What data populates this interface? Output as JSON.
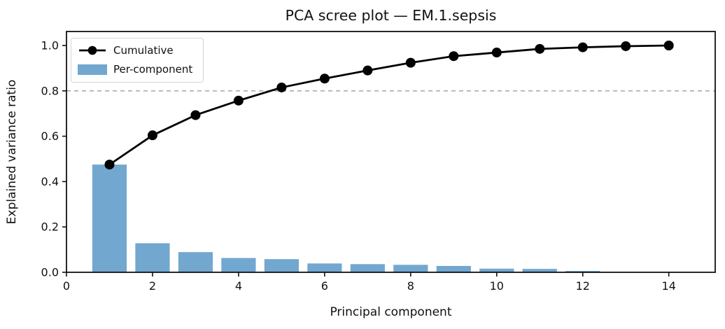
{
  "figure": {
    "title": "PCA scree plot — EM.1.sepsis",
    "xlabel": "Principal component",
    "ylabel": "Explained variance ratio"
  },
  "legend": {
    "position": "upper left",
    "items": [
      {
        "label": "Cumulative",
        "swatch": "black-line-with-circle-marker",
        "color": "#000000"
      },
      {
        "label": "Per-component",
        "swatch": "filled-patch",
        "color": "#72a7cf"
      }
    ]
  },
  "chart_data": {
    "type": "bar",
    "title": "PCA scree plot — EM.1.sepsis",
    "xlabel": "Principal component",
    "ylabel": "Explained variance ratio",
    "categories": [
      1,
      2,
      3,
      4,
      5,
      6,
      7,
      8,
      9,
      10,
      11,
      12,
      13,
      14
    ],
    "series": [
      {
        "name": "Per-component",
        "type": "bar",
        "color": "#72a7cf",
        "values": [
          0.475,
          0.128,
          0.089,
          0.063,
          0.058,
          0.039,
          0.036,
          0.033,
          0.028,
          0.016,
          0.015,
          0.006,
          0.002,
          0.001
        ]
      },
      {
        "name": "Cumulative",
        "type": "line",
        "color": "#000000",
        "marker": "circle",
        "values": [
          0.475,
          0.604,
          0.693,
          0.757,
          0.815,
          0.854,
          0.89,
          0.924,
          0.953,
          0.969,
          0.985,
          0.992,
          0.997,
          1.0
        ]
      }
    ],
    "threshold_line": {
      "y": 0.8,
      "style": "dashed",
      "color": "#9d9d9d"
    },
    "xlim": [
      -0.1,
      15.1
    ],
    "ylim": [
      0,
      1.06
    ],
    "xticks": [
      0,
      2,
      4,
      6,
      8,
      10,
      12,
      14
    ],
    "yticks": [
      0.0,
      0.2,
      0.4,
      0.6,
      0.8,
      1.0
    ],
    "grid": false,
    "legend_position": "upper left",
    "bar_width_units": 0.8,
    "frame": "all-spines-visible"
  }
}
